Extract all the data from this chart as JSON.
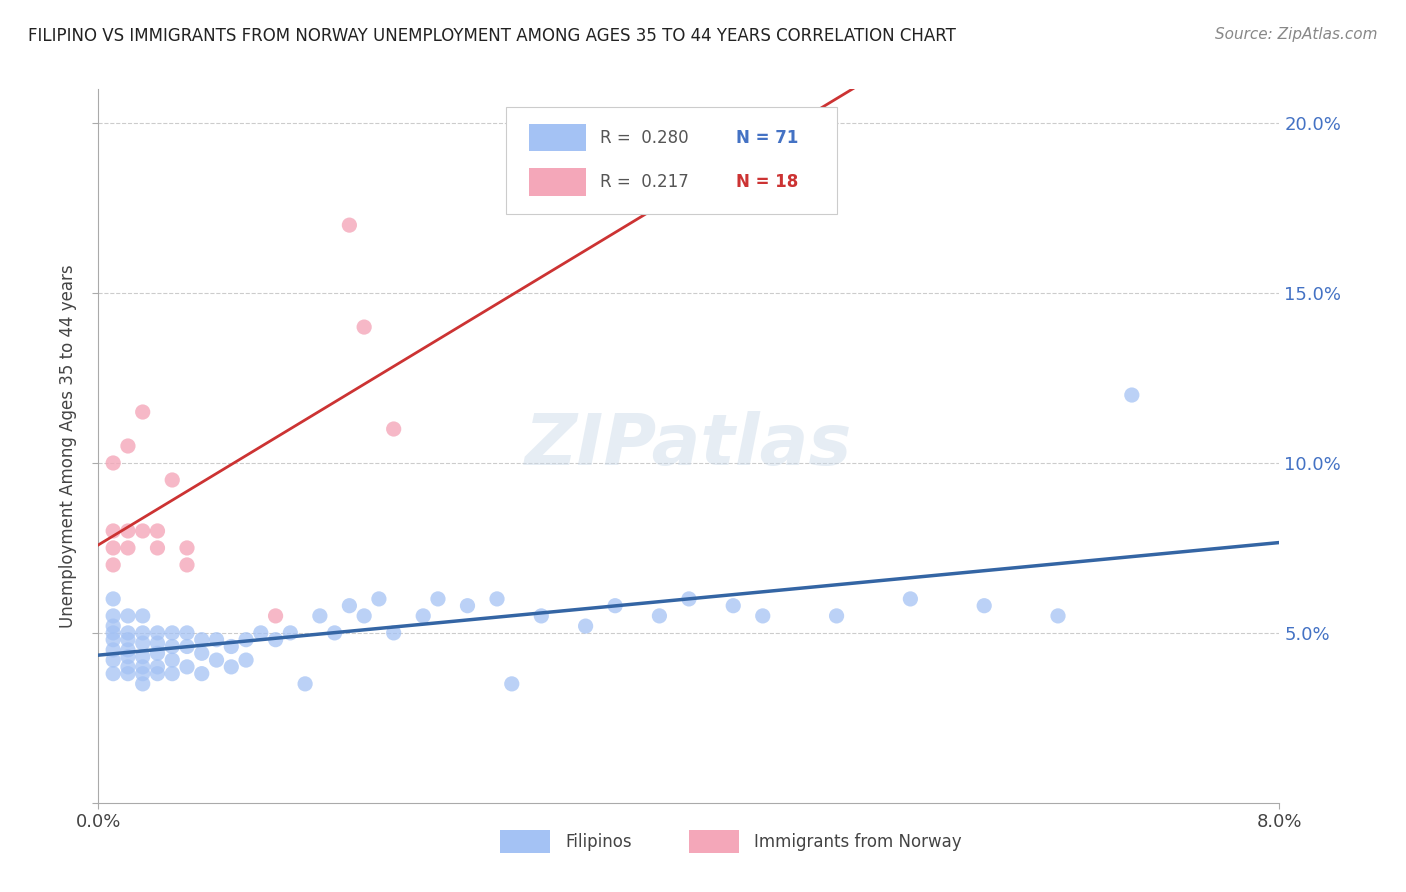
{
  "title": "FILIPINO VS IMMIGRANTS FROM NORWAY UNEMPLOYMENT AMONG AGES 35 TO 44 YEARS CORRELATION CHART",
  "source": "Source: ZipAtlas.com",
  "ylabel": "Unemployment Among Ages 35 to 44 years",
  "xlim": [
    0.0,
    0.08
  ],
  "ylim": [
    0.0,
    0.21
  ],
  "yticks": [
    0.0,
    0.05,
    0.1,
    0.15,
    0.2
  ],
  "ytick_labels": [
    "",
    "5.0%",
    "10.0%",
    "15.0%",
    "20.0%"
  ],
  "xtick_labels": [
    "0.0%",
    "8.0%"
  ],
  "filipino_color": "#a4c2f4",
  "norway_color": "#f4a7b9",
  "filipino_line_color": "#3465a4",
  "norway_line_color": "#cc3333",
  "watermark": "ZIPatlas",
  "filipino_x": [
    0.001,
    0.001,
    0.001,
    0.001,
    0.001,
    0.001,
    0.001,
    0.001,
    0.002,
    0.002,
    0.002,
    0.002,
    0.002,
    0.002,
    0.002,
    0.003,
    0.003,
    0.003,
    0.003,
    0.003,
    0.003,
    0.003,
    0.004,
    0.004,
    0.004,
    0.004,
    0.004,
    0.005,
    0.005,
    0.005,
    0.005,
    0.006,
    0.006,
    0.006,
    0.007,
    0.007,
    0.007,
    0.008,
    0.008,
    0.009,
    0.009,
    0.01,
    0.01,
    0.011,
    0.012,
    0.013,
    0.014,
    0.015,
    0.016,
    0.017,
    0.018,
    0.019,
    0.02,
    0.022,
    0.023,
    0.025,
    0.027,
    0.028,
    0.03,
    0.033,
    0.035,
    0.038,
    0.04,
    0.043,
    0.045,
    0.05,
    0.055,
    0.06,
    0.065,
    0.07
  ],
  "filipino_y": [
    0.05,
    0.048,
    0.045,
    0.055,
    0.042,
    0.06,
    0.038,
    0.052,
    0.05,
    0.048,
    0.045,
    0.043,
    0.04,
    0.038,
    0.055,
    0.05,
    0.047,
    0.043,
    0.04,
    0.038,
    0.055,
    0.035,
    0.05,
    0.047,
    0.044,
    0.04,
    0.038,
    0.05,
    0.046,
    0.042,
    0.038,
    0.05,
    0.046,
    0.04,
    0.048,
    0.044,
    0.038,
    0.048,
    0.042,
    0.046,
    0.04,
    0.048,
    0.042,
    0.05,
    0.048,
    0.05,
    0.035,
    0.055,
    0.05,
    0.058,
    0.055,
    0.06,
    0.05,
    0.055,
    0.06,
    0.058,
    0.06,
    0.035,
    0.055,
    0.052,
    0.058,
    0.055,
    0.06,
    0.058,
    0.055,
    0.055,
    0.06,
    0.058,
    0.055,
    0.12
  ],
  "norway_x": [
    0.001,
    0.001,
    0.001,
    0.001,
    0.002,
    0.002,
    0.002,
    0.003,
    0.003,
    0.004,
    0.004,
    0.005,
    0.006,
    0.006,
    0.012,
    0.017,
    0.018,
    0.02
  ],
  "norway_y": [
    0.07,
    0.08,
    0.1,
    0.075,
    0.105,
    0.075,
    0.08,
    0.115,
    0.08,
    0.075,
    0.08,
    0.095,
    0.075,
    0.07,
    0.055,
    0.17,
    0.14,
    0.11
  ]
}
